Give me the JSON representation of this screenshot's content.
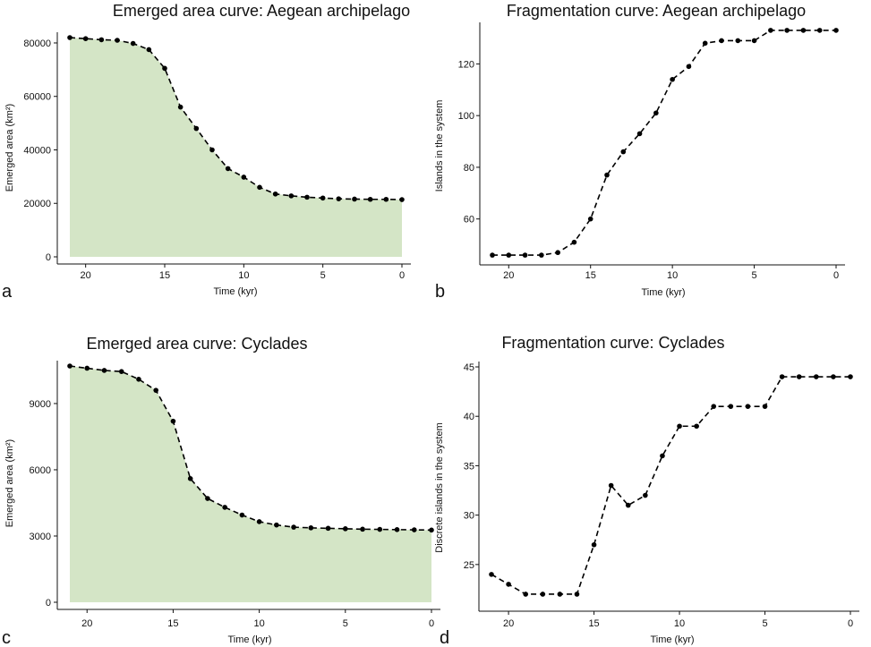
{
  "colors": {
    "area_fill": "#d4e5c6",
    "line": "#000000"
  },
  "chart_data": [
    {
      "id": "a",
      "type": "area",
      "panel_letter": "a",
      "title": "Emerged area curve: Aegean archipelago",
      "xlabel": "Time (kyr)",
      "ylabel": "Emerged area (km²)",
      "x_reversed": true,
      "xlim": [
        21,
        0
      ],
      "ylim": [
        0,
        82000
      ],
      "xticks": [
        20,
        15,
        10,
        5,
        0
      ],
      "yticks": [
        0,
        20000,
        40000,
        60000,
        80000
      ],
      "x": [
        21,
        20,
        19,
        18,
        17,
        16,
        15,
        14,
        13,
        12,
        11,
        10,
        9,
        8,
        7,
        6,
        5,
        4,
        3,
        2,
        1,
        0
      ],
      "y": [
        82000,
        81600,
        81200,
        81000,
        79800,
        77500,
        70500,
        56000,
        48000,
        40000,
        33000,
        29800,
        26000,
        23500,
        22800,
        22300,
        22000,
        21700,
        21600,
        21500,
        21500,
        21400
      ]
    },
    {
      "id": "b",
      "type": "line",
      "panel_letter": "b",
      "title": "Fragmentation curve: Aegean archipelago",
      "xlabel": "Time (kyr)",
      "ylabel": "Islands in the system",
      "x_reversed": true,
      "xlim": [
        21,
        0
      ],
      "ylim": [
        45,
        134
      ],
      "xticks": [
        20,
        15,
        10,
        5,
        0
      ],
      "yticks": [
        60,
        80,
        100,
        120
      ],
      "x": [
        21,
        20,
        19,
        18,
        17,
        16,
        15,
        14,
        13,
        12,
        11,
        10,
        9,
        8,
        7,
        6,
        5,
        4,
        3,
        2,
        1,
        0
      ],
      "y": [
        46,
        46,
        46,
        46,
        47,
        51,
        60,
        77,
        86,
        93,
        101,
        114,
        119,
        128,
        129,
        129,
        129,
        133,
        133,
        133,
        133,
        133
      ]
    },
    {
      "id": "c",
      "type": "area",
      "panel_letter": "c",
      "title": "Emerged area curve: Cyclades",
      "xlabel": "Time (kyr)",
      "ylabel": "Emerged area (km²)",
      "x_reversed": true,
      "xlim": [
        21,
        0
      ],
      "ylim": [
        0,
        10700
      ],
      "xticks": [
        20,
        15,
        10,
        5,
        0
      ],
      "yticks": [
        0,
        3000,
        6000,
        9000
      ],
      "x": [
        21,
        20,
        19,
        18,
        17,
        16,
        15,
        14,
        13,
        12,
        11,
        10,
        9,
        8,
        7,
        6,
        5,
        4,
        3,
        2,
        1,
        0
      ],
      "y": [
        10700,
        10600,
        10500,
        10450,
        10100,
        9600,
        8200,
        5600,
        4700,
        4300,
        3950,
        3650,
        3500,
        3400,
        3370,
        3350,
        3330,
        3310,
        3300,
        3290,
        3280,
        3270
      ]
    },
    {
      "id": "d",
      "type": "line",
      "panel_letter": "d",
      "title": "Fragmentation curve: Cyclades",
      "xlabel": "Time (kyr)",
      "ylabel": "Discrete islands in the system",
      "x_reversed": true,
      "xlim": [
        21,
        0
      ],
      "ylim": [
        21,
        45
      ],
      "xticks": [
        20,
        15,
        10,
        5,
        0
      ],
      "yticks": [
        25,
        30,
        35,
        40,
        45
      ],
      "x": [
        21,
        20,
        19,
        18,
        17,
        16,
        15,
        14,
        13,
        12,
        11,
        10,
        9,
        8,
        7,
        6,
        5,
        4,
        3,
        2,
        1,
        0
      ],
      "y": [
        24,
        23,
        22,
        22,
        22,
        22,
        27,
        33,
        31,
        32,
        36,
        39,
        39,
        41,
        41,
        41,
        41,
        44,
        44,
        44,
        44,
        44
      ]
    }
  ]
}
